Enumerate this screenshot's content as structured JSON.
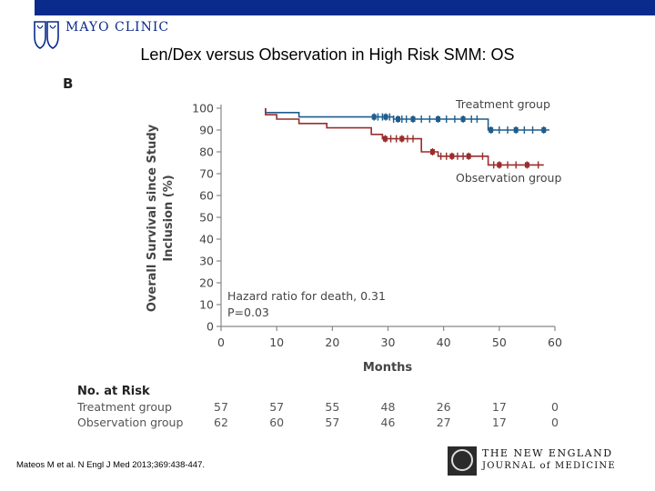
{
  "header": {
    "logo_text": "MAYO CLINIC",
    "bar_color": "#0a2a8c",
    "title": "Len/Dex versus Observation in High Risk SMM: OS"
  },
  "panel_letter": "B",
  "chart_data": {
    "type": "line",
    "title": "",
    "xlabel": "Months",
    "ylabel_line1": "Overall Survival since Study",
    "ylabel_line2": "Inclusion (%)",
    "xlim": [
      0,
      60
    ],
    "ylim": [
      0,
      100
    ],
    "x_ticks": [
      0,
      10,
      20,
      30,
      40,
      50,
      60
    ],
    "y_ticks": [
      0,
      10,
      20,
      30,
      40,
      50,
      60,
      70,
      80,
      90,
      100
    ],
    "annotation_line1": "Hazard ratio for death, 0.31",
    "annotation_line2": "P=0.03",
    "series": [
      {
        "name": "Treatment group",
        "color": "#1f5d8c",
        "steps": [
          [
            8,
            100
          ],
          [
            8,
            98
          ],
          [
            14,
            98
          ],
          [
            14,
            96
          ],
          [
            31,
            96
          ],
          [
            31,
            95
          ],
          [
            48,
            95
          ],
          [
            48,
            90
          ],
          [
            59,
            90
          ]
        ],
        "censors": [
          27.5,
          28.2,
          29,
          29.6,
          30.3,
          31,
          31.8,
          32.5,
          33.3,
          34.5,
          36,
          37.5,
          39,
          40.5,
          42,
          43.5,
          45,
          46,
          48.5,
          50,
          51.5,
          53,
          54.5,
          56,
          58
        ]
      },
      {
        "name": "Observation group",
        "color": "#9b2c2c",
        "steps": [
          [
            8,
            100
          ],
          [
            8,
            97
          ],
          [
            10,
            97
          ],
          [
            10,
            95
          ],
          [
            14,
            95
          ],
          [
            14,
            93
          ],
          [
            19,
            93
          ],
          [
            19,
            91
          ],
          [
            27,
            91
          ],
          [
            27,
            88
          ],
          [
            29,
            88
          ],
          [
            29,
            86
          ],
          [
            36,
            86
          ],
          [
            36,
            80
          ],
          [
            39,
            80
          ],
          [
            39,
            78
          ],
          [
            48,
            78
          ],
          [
            48,
            74
          ],
          [
            58,
            74
          ]
        ],
        "censors": [
          29.5,
          30.5,
          31.5,
          32.5,
          33.5,
          34.5,
          38,
          39.5,
          40.5,
          41.5,
          42.5,
          43.5,
          44.5,
          47,
          49,
          50,
          51.5,
          53,
          55,
          57
        ]
      }
    ]
  },
  "risk_table": {
    "heading": "No. at Risk",
    "rows": [
      {
        "label": "Treatment group",
        "values": [
          "57",
          "57",
          "55",
          "48",
          "26",
          "17",
          "0"
        ]
      },
      {
        "label": "Observation group",
        "values": [
          "62",
          "60",
          "57",
          "46",
          "27",
          "17",
          "0"
        ]
      }
    ]
  },
  "citation": "Mateos M et al. N Engl J Med 2013;369:438-447.",
  "journal_logo": {
    "line1": "THE NEW ENGLAND",
    "line2": "JOURNAL of MEDICINE"
  }
}
